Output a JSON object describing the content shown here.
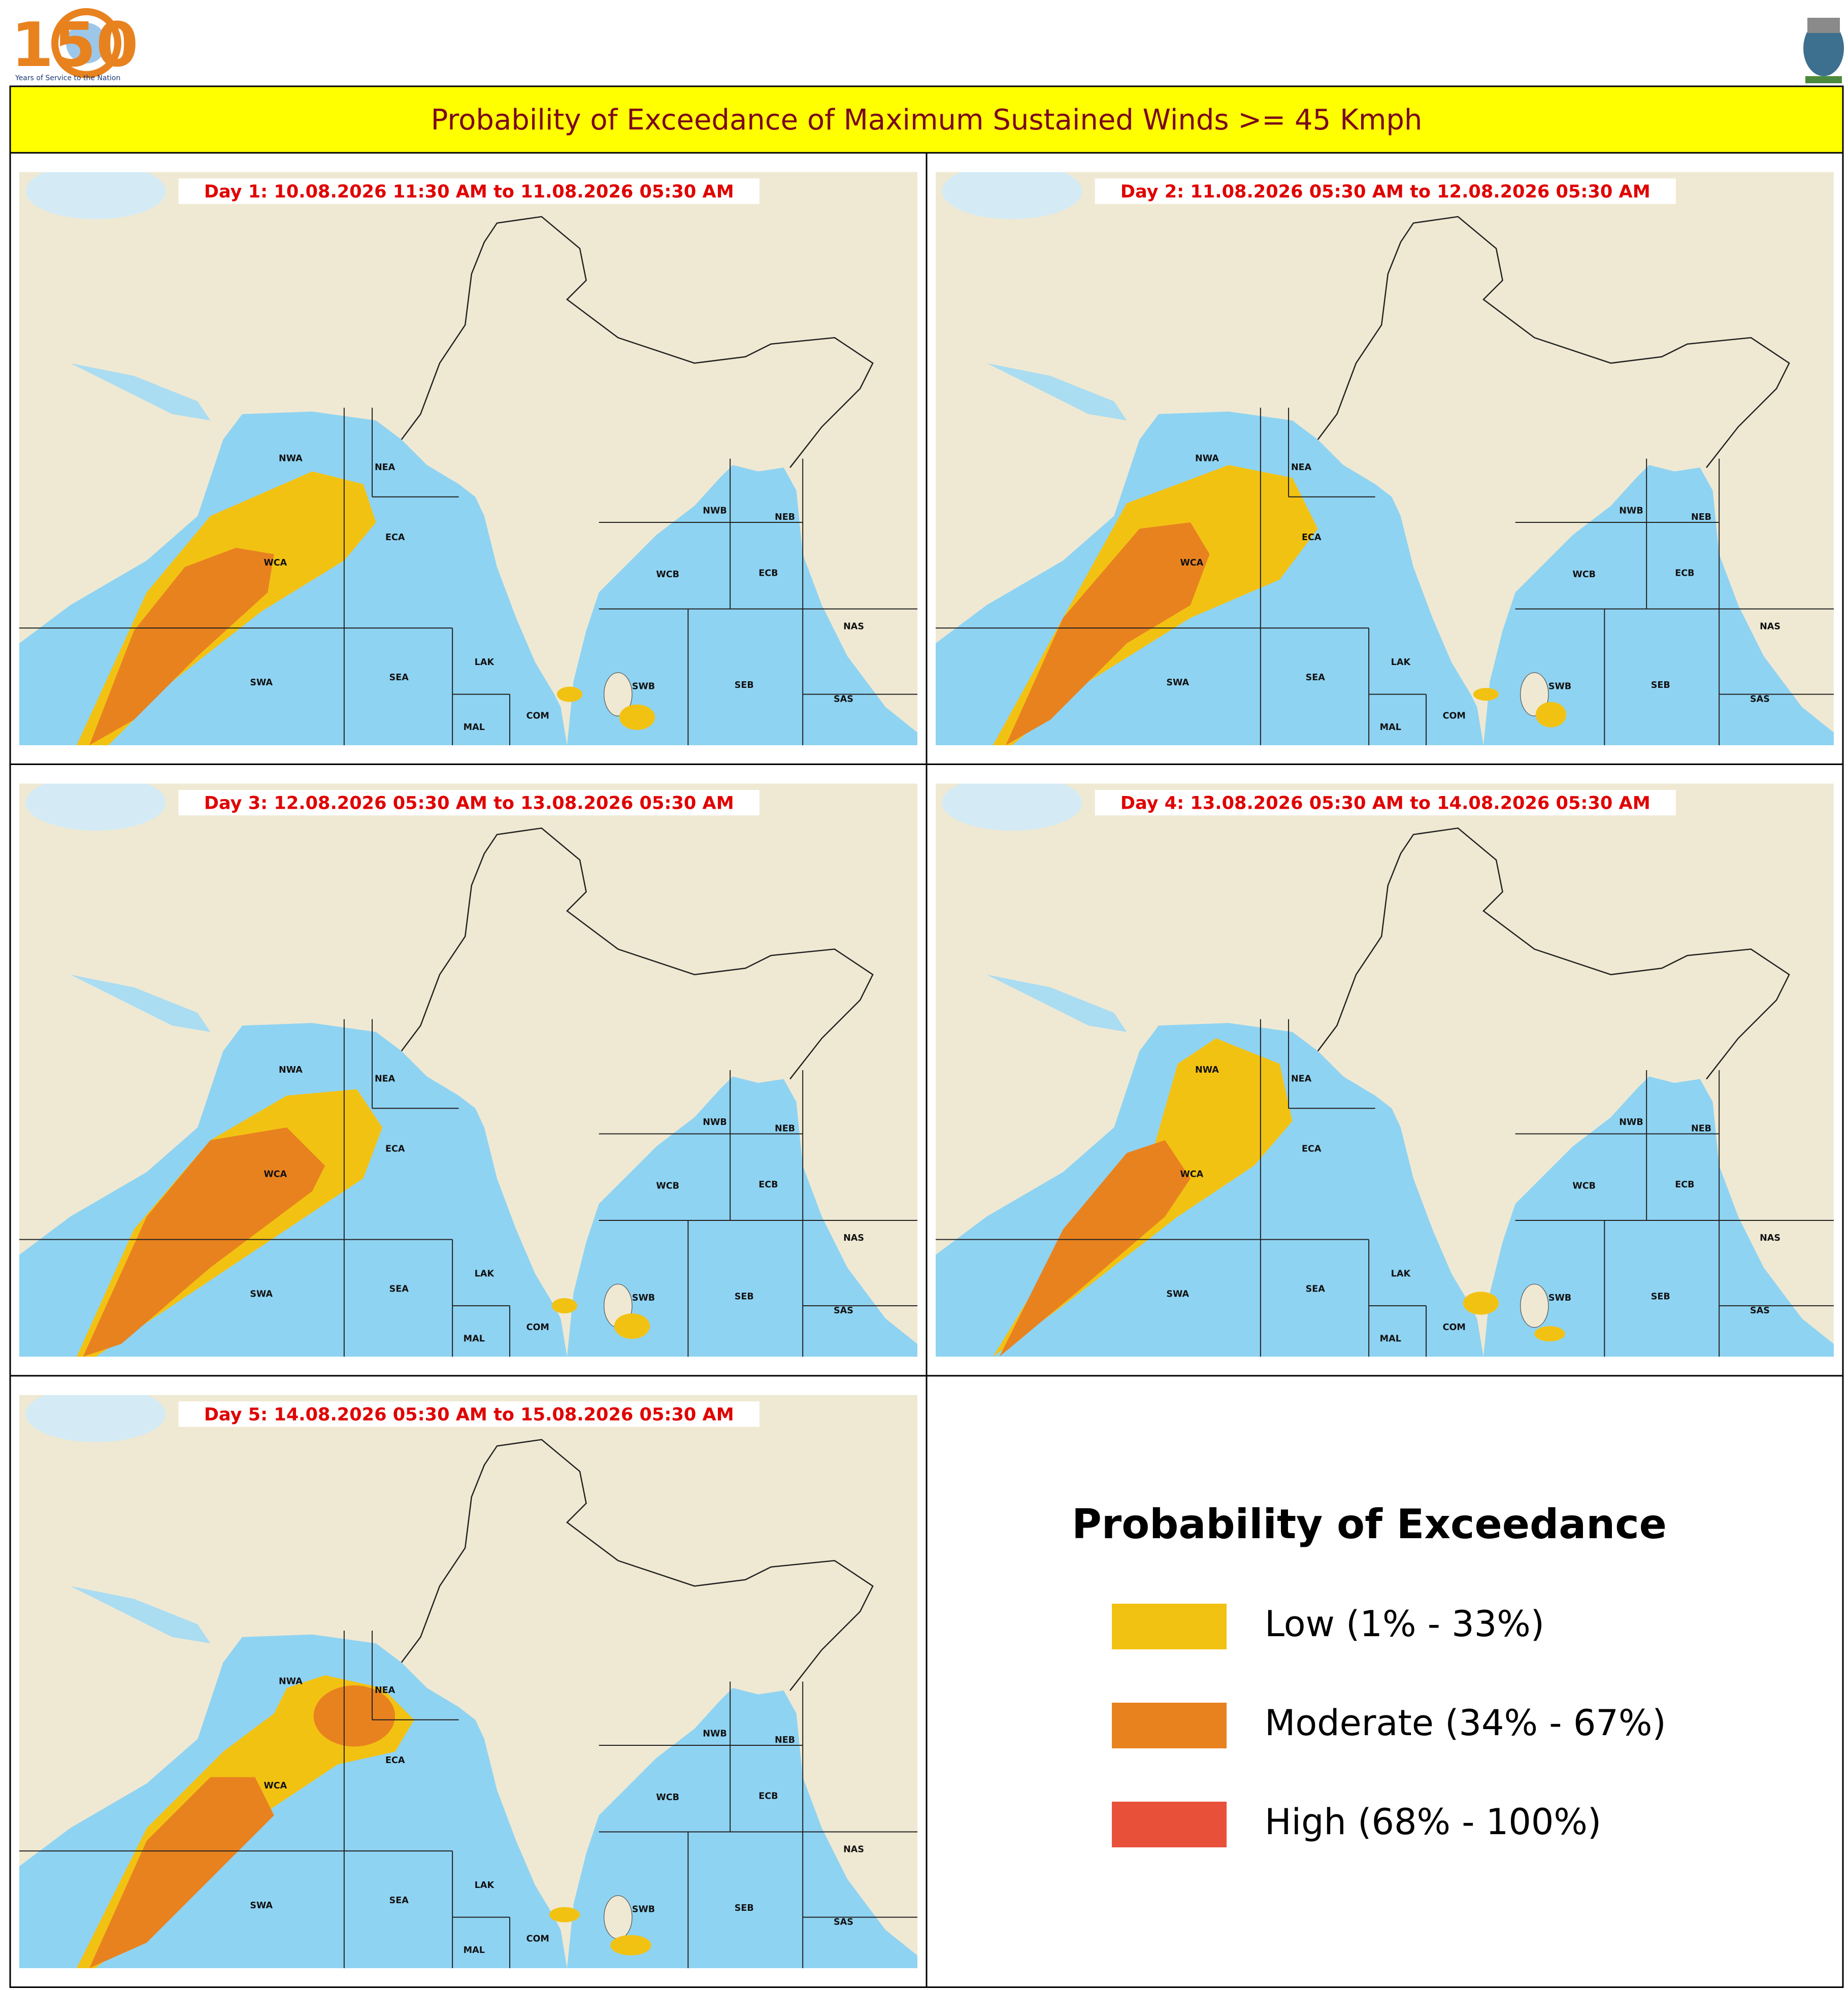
{
  "header": {
    "logo_number": "150",
    "logo_caption": "Years of Service to the Nation",
    "title": "Probability of Exceedance of Maximum Sustained Winds >= 45 Kmph"
  },
  "panels": [
    {
      "label": "Day 1: 10.08.2026 11:30 AM to 11.08.2026 05:30 AM"
    },
    {
      "label": "Day 2: 11.08.2026 05:30 AM to 12.08.2026 05:30 AM"
    },
    {
      "label": "Day 3: 12.08.2026 05:30 AM to 13.08.2026 05:30 AM"
    },
    {
      "label": "Day 4: 13.08.2026 05:30 AM to 14.08.2026 05:30 AM"
    },
    {
      "label": "Day 5: 14.08.2026 05:30 AM to 15.08.2026 05:30 AM"
    }
  ],
  "region_labels": [
    "NWA",
    "NEA",
    "ECA",
    "WCA",
    "SWA",
    "SEA",
    "LAK",
    "MAL",
    "COM",
    "SWB",
    "SEB",
    "WCB",
    "ECB",
    "NWB",
    "NEB",
    "NAS",
    "SAS"
  ],
  "legend": {
    "title": "Probability of Exceedance",
    "items": [
      {
        "label": "Low (1% - 33%)",
        "color": "#f2c213"
      },
      {
        "label": "Moderate (34% - 67%)",
        "color": "#e8821f"
      },
      {
        "label": "High (68% - 100%)",
        "color": "#e8503a"
      }
    ]
  }
}
